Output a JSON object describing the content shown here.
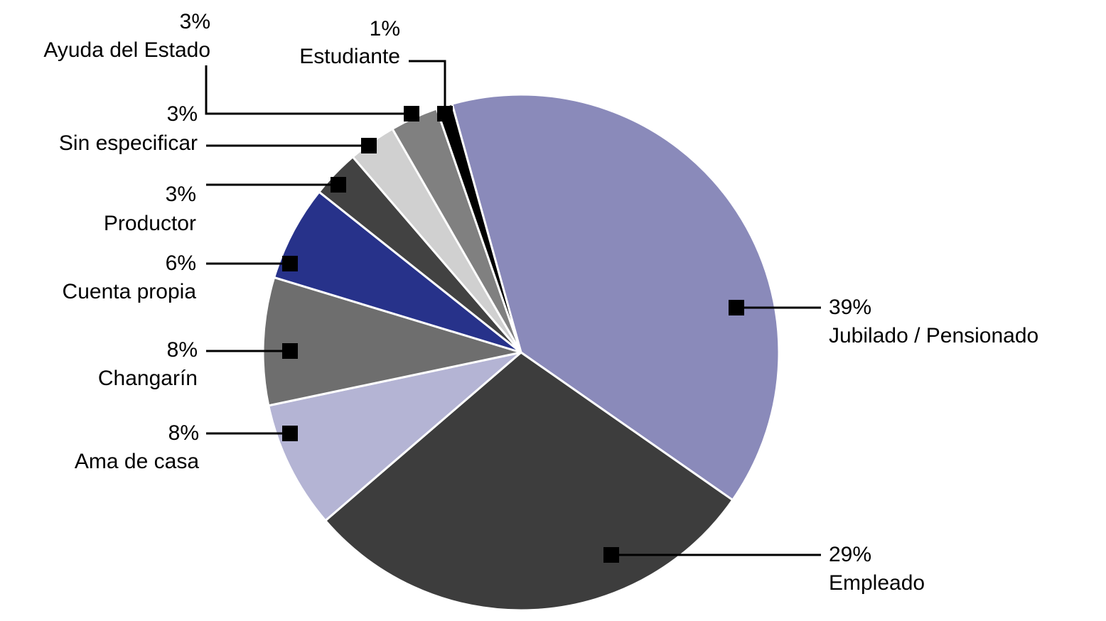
{
  "chart_data": {
    "type": "pie",
    "categories": [
      "Jubilado / Pensionado",
      "Empleado",
      "Ama de casa",
      "Changarín",
      "Cuenta propia",
      "Productor",
      "Sin especificar",
      "Ayuda del Estado",
      "Estudiante"
    ],
    "values": [
      39,
      29,
      8,
      8,
      6,
      3,
      3,
      3,
      1
    ],
    "value_labels": [
      "39%",
      "29%",
      "8%",
      "8%",
      "6%",
      "3%",
      "3%",
      "3%",
      "1%"
    ],
    "colors": [
      "#8a8aba",
      "#3d3d3d",
      "#b4b4d4",
      "#6e6e6e",
      "#27328a",
      "#424242",
      "#d0d0d0",
      "#808080",
      "#000000"
    ]
  }
}
